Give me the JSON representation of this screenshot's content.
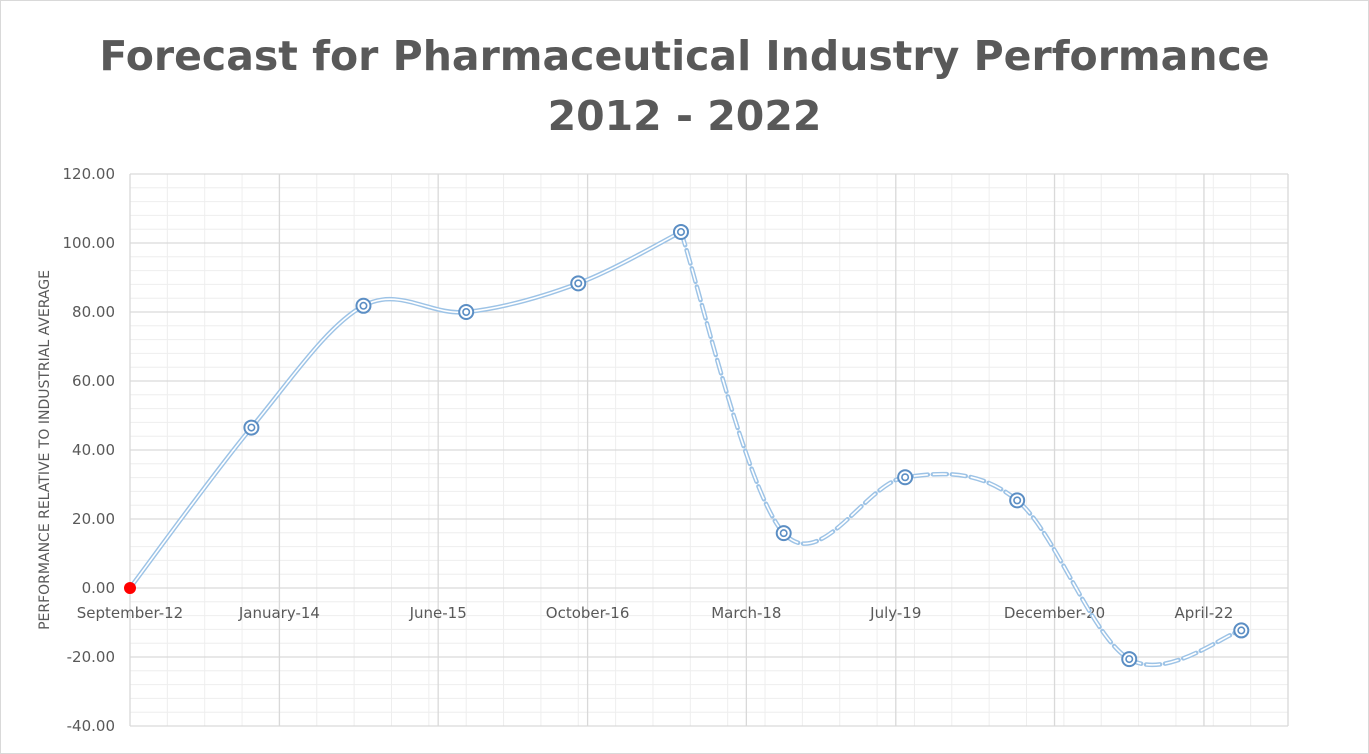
{
  "chart_data": {
    "type": "line",
    "title_line1": "Forecast for Pharmaceutical Industry Performance",
    "title_line2": "2012 - 2022",
    "xlabel": "",
    "ylabel": "PERFORMANCE RELATIVE TO INDUSTRIAL AVERAGE",
    "ylim": [
      -40,
      120
    ],
    "y_ticks": [
      "120.00",
      "100.00",
      "80.00",
      "60.00",
      "40.00",
      "20.00",
      "0.00",
      "-20.00",
      "-40.00"
    ],
    "x_start": "2012-09",
    "x_end": "2023-01",
    "x_ticks": [
      {
        "date": "2012-09",
        "label": "September-12"
      },
      {
        "date": "2014-01",
        "label": "January-14"
      },
      {
        "date": "2015-06",
        "label": "June-15"
      },
      {
        "date": "2016-10",
        "label": "October-16"
      },
      {
        "date": "2018-03",
        "label": "March-18"
      },
      {
        "date": "2019-07",
        "label": "July-19"
      },
      {
        "date": "2020-12",
        "label": "December-20"
      },
      {
        "date": "2022-04",
        "label": "April-22"
      }
    ],
    "grid": true,
    "series": [
      {
        "style": "solid",
        "color": "#9dc3e6",
        "points": [
          {
            "date": "2012-09",
            "y": 0.0
          },
          {
            "date": "2013-10",
            "y": 46.5
          },
          {
            "date": "2014-10",
            "y": 81.8
          },
          {
            "date": "2015-09",
            "y": 80.0
          },
          {
            "date": "2016-09",
            "y": 88.3
          },
          {
            "date": "2017-08",
            "y": 103.2
          }
        ]
      },
      {
        "style": "dashed",
        "color": "#9dc3e6",
        "points": [
          {
            "date": "2017-08",
            "y": 103.2
          },
          {
            "date": "2018-07",
            "y": 15.9
          },
          {
            "date": "2019-08",
            "y": 32.1
          },
          {
            "date": "2020-08",
            "y": 25.4
          },
          {
            "date": "2021-08",
            "y": -20.6
          },
          {
            "date": "2022-08",
            "y": -12.3
          }
        ]
      }
    ],
    "highlight_point": {
      "date": "2012-09",
      "y": 0.0,
      "color": "#ff0000"
    },
    "marker_color": "#5b8ec4",
    "gridline_color": "#d9d9d9",
    "minor_gridline_color": "#eeeeee"
  }
}
